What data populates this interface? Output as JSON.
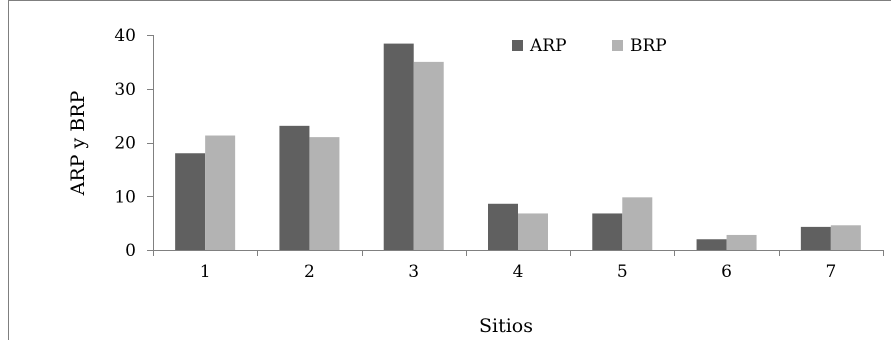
{
  "chart_data": {
    "type": "bar",
    "title": "",
    "xlabel": "Sitios",
    "ylabel": "ARP y BRP",
    "categories": [
      "1",
      "2",
      "3",
      "4",
      "5",
      "6",
      "7"
    ],
    "series": [
      {
        "name": "ARP",
        "color": "#606060",
        "values": [
          18.0,
          23.1,
          38.4,
          8.6,
          6.8,
          2.0,
          4.3
        ]
      },
      {
        "name": "BRP",
        "color": "#b3b3b3",
        "values": [
          21.3,
          21.0,
          35.0,
          6.8,
          9.8,
          2.8,
          4.6
        ]
      }
    ],
    "ylim": [
      0,
      40
    ],
    "yticks": [
      "0",
      "10",
      "20",
      "30",
      "40"
    ],
    "grid": false,
    "legend_position": "top-right"
  }
}
